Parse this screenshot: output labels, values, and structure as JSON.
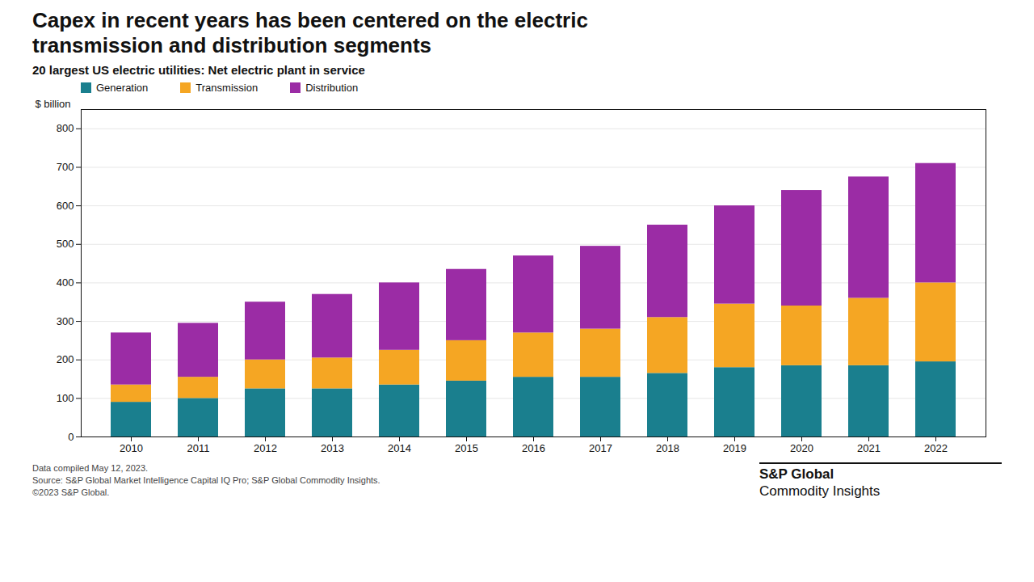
{
  "chart_data": {
    "type": "bar",
    "stacked": true,
    "title": "Capex in recent years has been centered on the electric\ntransmission and distribution segments",
    "subtitle": "20 largest US electric utilities:  Net electric plant in service",
    "ylabel": "$ billion",
    "categories": [
      2010,
      2011,
      2012,
      2013,
      2014,
      2015,
      2016,
      2017,
      2018,
      2019,
      2020,
      2021,
      2022
    ],
    "series": [
      {
        "name": "Generation",
        "color": "#1a7f8e",
        "values": [
          90,
          100,
          125,
          125,
          135,
          145,
          155,
          155,
          165,
          180,
          185,
          185,
          195
        ]
      },
      {
        "name": "Transmission",
        "color": "#f5a623",
        "values": [
          45,
          55,
          75,
          80,
          90,
          105,
          115,
          125,
          145,
          165,
          155,
          175,
          205
        ]
      },
      {
        "name": "Distribution",
        "color": "#9b2ca5",
        "values": [
          135,
          140,
          150,
          165,
          175,
          185,
          200,
          215,
          240,
          255,
          300,
          315,
          310
        ]
      }
    ],
    "ylim": [
      0,
      850
    ],
    "yticks": [
      0,
      100,
      200,
      300,
      400,
      500,
      600,
      700,
      800
    ],
    "grid": true,
    "legend": "top",
    "footnotes": [
      "Data compiled May 12, 2023.",
      "Source: S&P Global Market Intelligence Capital IQ Pro; S&P Global Commodity Insights.",
      "©2023 S&P Global."
    ],
    "annotations": [
      "S&P Global",
      "Commodity Insights"
    ]
  }
}
